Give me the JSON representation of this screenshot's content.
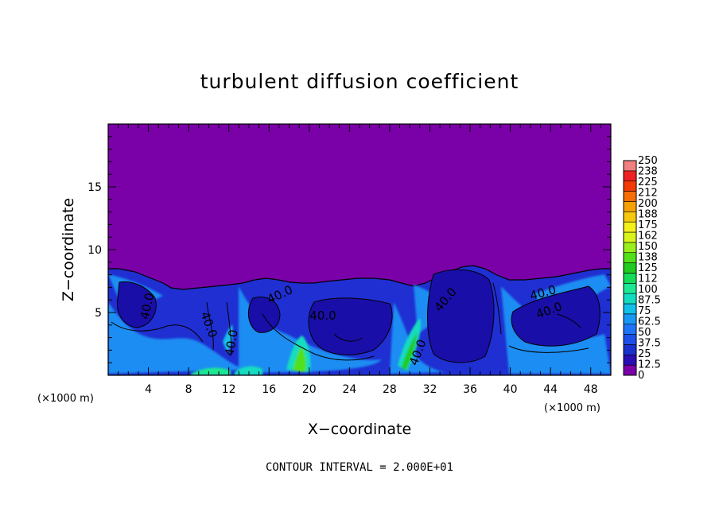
{
  "chart_data": {
    "type": "heatmap",
    "title": "turbulent diffusion coefficient",
    "xlabel": "X−coordinate",
    "ylabel": "Z−coordinate",
    "x_unit_left": "(×1000 m)",
    "x_unit_right": "(×1000 m)",
    "xlim": [
      0,
      50
    ],
    "ylim": [
      0,
      20
    ],
    "x_ticks": [
      4,
      8,
      12,
      16,
      20,
      24,
      28,
      32,
      36,
      40,
      44,
      48
    ],
    "y_ticks": [
      5,
      10,
      15
    ],
    "colorbar": {
      "levels": [
        "0",
        "12.5",
        "25",
        "37.5",
        "50",
        "62.5",
        "75",
        "87.5",
        "100",
        "112",
        "125",
        "138",
        "150",
        "162",
        "175",
        "188",
        "200",
        "212",
        "225",
        "238",
        "250"
      ],
      "colors": [
        "#7a00a8",
        "#2a0fb4",
        "#1a32cc",
        "#1c50e8",
        "#1e73f7",
        "#1898f4",
        "#12bfe9",
        "#14dcc0",
        "#1ee894",
        "#16dc5a",
        "#20ca1e",
        "#52e01a",
        "#9aee1c",
        "#d8f41a",
        "#f4f01a",
        "#f6c80e",
        "#f6a008",
        "#f56e08",
        "#f23a08",
        "#ee2222",
        "#f08080"
      ]
    },
    "contour_labels": [
      "40.0",
      "40.0",
      "40.0",
      "40.0",
      "40.0",
      "40.0",
      "40.0",
      "40.0",
      "40.0"
    ],
    "footer": "CONTOUR INTERVAL = 2.000E+01"
  }
}
